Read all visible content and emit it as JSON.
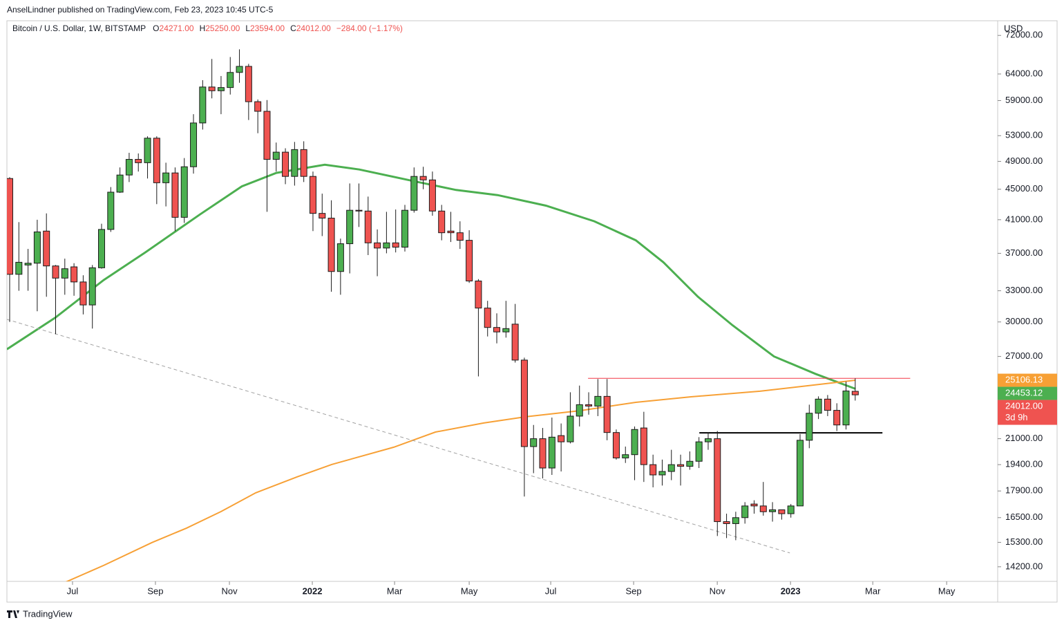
{
  "publisher": "AnselLindner published on TradingView.com, Feb 23, 2023 10:45 UTC-5",
  "footer": "TradingView",
  "chart_data": {
    "type": "candlestick",
    "title": "Bitcoin / U.S. Dollar, 1W, BITSTAMP",
    "ohlc": [
      {
        "key": "O",
        "value": "24271.00"
      },
      {
        "key": "H",
        "value": "25250.00"
      },
      {
        "key": "L",
        "value": "23594.00"
      },
      {
        "key": "C",
        "value": "24012.00"
      }
    ],
    "change": "−284.00 (−1.17%)",
    "currency": "USD",
    "log_y": true,
    "up_color": "#4caf50",
    "down_color": "#ef5350",
    "wick_color": "#1a1a1a",
    "x": [
      0,
      1,
      2,
      3,
      4,
      5,
      6,
      7,
      8,
      9,
      10,
      11,
      12,
      13,
      14,
      15,
      16,
      17,
      18,
      19,
      20,
      21,
      22,
      23,
      24,
      25,
      26,
      27,
      28,
      29,
      30,
      31,
      32,
      33,
      34,
      35,
      36,
      37,
      38,
      39,
      40,
      41,
      42,
      43,
      44,
      45,
      46,
      47,
      48,
      49,
      50,
      51,
      52,
      53,
      54,
      55,
      56,
      57,
      58,
      59,
      60,
      61,
      62,
      63,
      64,
      65,
      66,
      67,
      68,
      69,
      70,
      71,
      72,
      73,
      74,
      75,
      76,
      77,
      78,
      79,
      80,
      81,
      82,
      83,
      84,
      85,
      86,
      87,
      88,
      89,
      90,
      91,
      92
    ],
    "open": [
      46500,
      34700,
      35700,
      35900,
      39600,
      35600,
      34300,
      35500,
      33900,
      31600,
      35400,
      39800,
      44600,
      47000,
      49300,
      48800,
      52600,
      45900,
      47300,
      41300,
      48200,
      55100,
      61500,
      60800,
      61400,
      64300,
      65500,
      58800,
      57100,
      49300,
      50400,
      46800,
      50800,
      46800,
      41800,
      41200,
      35000,
      38100,
      42200,
      42100,
      38200,
      37600,
      38200,
      37700,
      42200,
      46800,
      46300,
      42100,
      39600,
      39400,
      38500,
      34000,
      31300,
      29500,
      29100,
      29800,
      26700,
      20500,
      21000,
      19200,
      21200,
      20800,
      22500,
      23300,
      23200,
      23900,
      21400,
      19800,
      20000,
      21700,
      19400,
      18800,
      19000,
      19400,
      19300,
      19600,
      20800,
      21000,
      16300,
      16200,
      16500,
      17200,
      17100,
      16800,
      16900,
      16700,
      17100,
      20900,
      22700,
      23700,
      22900,
      21900,
      24271
    ],
    "high": [
      46700,
      40700,
      37500,
      41000,
      41800,
      35700,
      36400,
      35900,
      34600,
      35700,
      40500,
      45300,
      48100,
      50300,
      50200,
      52900,
      52900,
      48800,
      48100,
      49500,
      56600,
      62800,
      67000,
      63600,
      67400,
      69000,
      66000,
      59200,
      59100,
      51900,
      51000,
      52000,
      52100,
      47500,
      44400,
      43500,
      38700,
      45800,
      45800,
      44000,
      39800,
      42000,
      42300,
      42900,
      48100,
      48200,
      47500,
      42900,
      42000,
      40800,
      39700,
      34200,
      32000,
      30800,
      32000,
      31700,
      26900,
      21900,
      21700,
      22400,
      22000,
      24200,
      24700,
      24200,
      25200,
      25200,
      21600,
      20500,
      21800,
      22800,
      20000,
      19700,
      20300,
      20000,
      20200,
      21100,
      21400,
      21500,
      16700,
      16800,
      17300,
      17400,
      18400,
      17300,
      16900,
      17200,
      21300,
      23300,
      23900,
      24000,
      23400,
      25000,
      25250
    ],
    "low": [
      30000,
      33000,
      33000,
      31000,
      32400,
      28900,
      32600,
      32500,
      30700,
      29400,
      35300,
      39500,
      44500,
      46000,
      47500,
      46500,
      43000,
      42700,
      39600,
      40600,
      47200,
      54000,
      59400,
      56600,
      60100,
      62300,
      55600,
      53400,
      42000,
      47500,
      45700,
      45500,
      46000,
      39600,
      39000,
      32900,
      32600,
      34800,
      40100,
      36800,
      34500,
      37000,
      37100,
      37200,
      41900,
      45000,
      41500,
      38500,
      38300,
      37500,
      33800,
      25400,
      28700,
      28100,
      28600,
      26500,
      17600,
      18900,
      18600,
      18800,
      19000,
      20700,
      21800,
      22600,
      22500,
      20900,
      19700,
      19500,
      18500,
      18400,
      18100,
      18200,
      18500,
      18200,
      19100,
      19200,
      20300,
      15600,
      15500,
      15400,
      16200,
      16700,
      16600,
      16300,
      16400,
      16500,
      17100,
      20400,
      22300,
      22500,
      21500,
      21600,
      23594
    ],
    "close": [
      34700,
      36000,
      35900,
      39500,
      35600,
      34300,
      35300,
      33900,
      31600,
      35400,
      39800,
      44600,
      47000,
      49300,
      48800,
      52600,
      45900,
      47300,
      41300,
      48200,
      55100,
      61500,
      60800,
      61400,
      64300,
      65500,
      58800,
      57100,
      49300,
      50400,
      46800,
      50800,
      46800,
      41800,
      41200,
      35000,
      38100,
      42200,
      42100,
      38200,
      37600,
      38200,
      37700,
      42200,
      46800,
      46300,
      42100,
      39400,
      39400,
      38500,
      34000,
      31300,
      29500,
      29100,
      29400,
      26700,
      20500,
      21000,
      19200,
      21100,
      20800,
      22500,
      23300,
      23200,
      23900,
      21400,
      19800,
      20000,
      21600,
      19400,
      18800,
      19000,
      19400,
      19300,
      19600,
      20800,
      21000,
      16300,
      16200,
      16500,
      17100,
      17100,
      16800,
      16900,
      16700,
      17100,
      20900,
      22700,
      23700,
      22900,
      21900,
      24296,
      24012
    ],
    "lines": [
      {
        "color": "#4caf50",
        "width": 3,
        "x": [
          -0.3,
          4.96,
          10.23,
          14.74,
          20.75,
          25.26,
          29.02,
          34.29,
          38.05,
          44.06,
          48.57,
          53.08,
          58.35,
          63.61,
          68.12,
          71.13,
          74.89,
          78.65,
          83.16,
          87.67,
          92.03
        ],
        "values": [
          27600,
          30400,
          34100,
          37100,
          41700,
          45400,
          47300,
          48500,
          47800,
          46100,
          44900,
          44200,
          42800,
          40800,
          38500,
          36000,
          32400,
          29700,
          27000,
          25600,
          24453.12
        ]
      },
      {
        "color": "#f7a035",
        "width": 2,
        "x": [
          6.09,
          10.23,
          15.49,
          19.25,
          23.0,
          26.77,
          31.28,
          35.04,
          41.8,
          46.32,
          51.58,
          56.09,
          62.1,
          68.12,
          74.14,
          81.65,
          92.03
        ],
        "values": [
          13550,
          14260,
          15290,
          15980,
          16810,
          17800,
          18690,
          19410,
          20460,
          21430,
          22030,
          22450,
          22880,
          23470,
          23870,
          24280,
          25106.13
        ]
      },
      {
        "color": "#f23645",
        "width": 1,
        "x": [
          62.93,
          97.98
        ],
        "values": [
          25250,
          25250
        ]
      },
      {
        "color": "#000000",
        "width": 2,
        "x": [
          75.04,
          94.96
        ],
        "values": [
          21380,
          21380
        ]
      },
      {
        "color": "#a0a0a0",
        "width": 1,
        "dash": true,
        "x": [
          -0.3,
          84.89
        ],
        "values": [
          30240,
          14810
        ]
      }
    ],
    "xlim": [
      -0.3,
      107.5
    ],
    "xticks": [
      {
        "value": 6.84,
        "label": "Jul"
      },
      {
        "value": 15.86,
        "label": "Sep"
      },
      {
        "value": 23.91,
        "label": "Nov"
      },
      {
        "value": 32.93,
        "label": "2022"
      },
      {
        "value": 41.88,
        "label": "Mar"
      },
      {
        "value": 50.0,
        "label": "May"
      },
      {
        "value": 58.87,
        "label": "Jul"
      },
      {
        "value": 67.89,
        "label": "Sep"
      },
      {
        "value": 76.99,
        "label": "Nov"
      },
      {
        "value": 84.96,
        "label": "2023"
      },
      {
        "value": 93.91,
        "label": "Mar"
      },
      {
        "value": 101.95,
        "label": "May"
      }
    ],
    "ylim": [
      13580,
      75300
    ],
    "yticks": [
      {
        "value": 72000,
        "label": "72000.00"
      },
      {
        "value": 64000,
        "label": "64000.00"
      },
      {
        "value": 59000,
        "label": "59000.00"
      },
      {
        "value": 53000,
        "label": "53000.00"
      },
      {
        "value": 49000,
        "label": "49000.00"
      },
      {
        "value": 45000,
        "label": "45000.00"
      },
      {
        "value": 41000,
        "label": "41000.00"
      },
      {
        "value": 37000,
        "label": "37000.00"
      },
      {
        "value": 33000,
        "label": "33000.00"
      },
      {
        "value": 30000,
        "label": "30000.00"
      },
      {
        "value": 27000,
        "label": "27000.00"
      },
      {
        "value": 21000,
        "label": "21000.00"
      },
      {
        "value": 19400,
        "label": "19400.00"
      },
      {
        "value": 17900,
        "label": "17900.00"
      },
      {
        "value": 16500,
        "label": "16500.00"
      },
      {
        "value": 15300,
        "label": "15300.00"
      },
      {
        "value": 14200,
        "label": "14200.00"
      }
    ],
    "price_tags": [
      {
        "value": 25106.13,
        "label": "25106.13",
        "color": "#f7a035"
      },
      {
        "value": 24453.12,
        "label": "24453.12",
        "color": "#4caf50"
      },
      {
        "value": 24012,
        "label": "24012.00",
        "color": "#ef5350",
        "countdown": "3d 9h"
      }
    ]
  }
}
